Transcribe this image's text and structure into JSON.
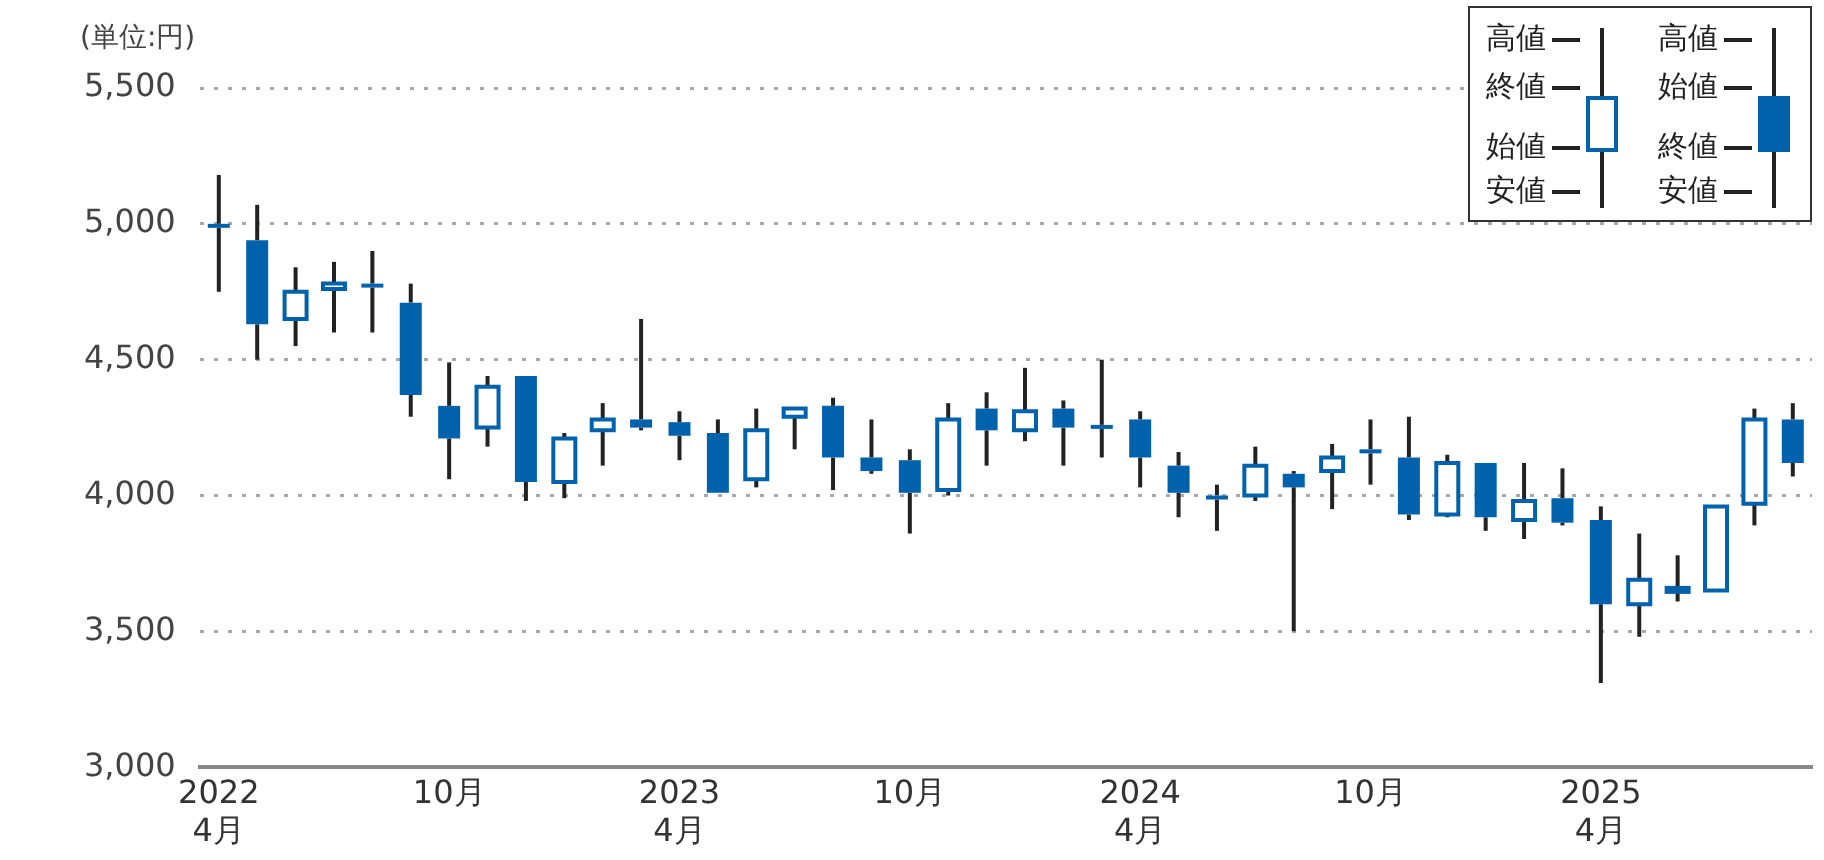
{
  "chart_data": {
    "type": "candlestick",
    "ylabel": "(単位:円)",
    "categories": [
      "2022\n4月",
      null,
      null,
      null,
      null,
      null,
      "10月",
      null,
      null,
      null,
      null,
      null,
      "2023\n4月",
      null,
      null,
      null,
      null,
      null,
      "10月",
      null,
      null,
      null,
      null,
      null,
      "2024\n4月",
      null,
      null,
      null,
      null,
      null,
      "10月",
      null,
      null,
      null,
      null,
      null,
      "2025\n4月",
      null,
      null,
      null,
      null,
      null
    ],
    "ohlc": [
      [
        5000,
        5180,
        4750,
        4990
      ],
      [
        4940,
        5070,
        4500,
        4630
      ],
      [
        4650,
        4840,
        4550,
        4750
      ],
      [
        4760,
        4860,
        4600,
        4780
      ],
      [
        4780,
        4900,
        4600,
        4770
      ],
      [
        4710,
        4780,
        4290,
        4370
      ],
      [
        4330,
        4490,
        4060,
        4210
      ],
      [
        4250,
        4440,
        4180,
        4400
      ],
      [
        4440,
        4440,
        3980,
        4050
      ],
      [
        4050,
        4230,
        3990,
        4210
      ],
      [
        4240,
        4340,
        4110,
        4280
      ],
      [
        4280,
        4650,
        4240,
        4250
      ],
      [
        4270,
        4310,
        4130,
        4220
      ],
      [
        4230,
        4280,
        4010,
        4010
      ],
      [
        4060,
        4320,
        4030,
        4240
      ],
      [
        4290,
        4320,
        4170,
        4320
      ],
      [
        4330,
        4360,
        4020,
        4140
      ],
      [
        4140,
        4280,
        4080,
        4090
      ],
      [
        4130,
        4170,
        3860,
        4010
      ],
      [
        4020,
        4340,
        4000,
        4280
      ],
      [
        4320,
        4380,
        4110,
        4240
      ],
      [
        4240,
        4470,
        4200,
        4310
      ],
      [
        4320,
        4350,
        4110,
        4250
      ],
      [
        4260,
        4500,
        4140,
        4250
      ],
      [
        4280,
        4310,
        4030,
        4140
      ],
      [
        4110,
        4160,
        3920,
        4010
      ],
      [
        4000,
        4040,
        3870,
        3990
      ],
      [
        4000,
        4180,
        3980,
        4110
      ],
      [
        4080,
        4090,
        3500,
        4030
      ],
      [
        4090,
        4190,
        3950,
        4140
      ],
      [
        4170,
        4280,
        4040,
        4160
      ],
      [
        4140,
        4290,
        3910,
        3930
      ],
      [
        3930,
        4150,
        3920,
        4120
      ],
      [
        4120,
        4120,
        3870,
        3920
      ],
      [
        3910,
        4120,
        3840,
        3980
      ],
      [
        3990,
        4100,
        3890,
        3900
      ],
      [
        3910,
        3960,
        3310,
        3600
      ],
      [
        3600,
        3860,
        3480,
        3690
      ],
      [
        3650,
        3780,
        3610,
        3660
      ],
      [
        3650,
        3960,
        3650,
        3960
      ],
      [
        3970,
        4320,
        3890,
        4280
      ],
      [
        4280,
        4340,
        4070,
        4120
      ]
    ],
    "color": "#0062ad",
    "ylim": [
      3000,
      5500
    ],
    "yticks": [
      {
        "value": 3000,
        "label": "3,000"
      },
      {
        "value": 3500,
        "label": "3,500"
      },
      {
        "value": 4000,
        "label": "4,000"
      },
      {
        "value": 4500,
        "label": "4,500"
      },
      {
        "value": 5000,
        "label": "5,000"
      },
      {
        "value": 5500,
        "label": "5,500"
      }
    ],
    "grid": "y",
    "annotations": [
      "高値",
      "終値",
      "始値",
      "安値",
      "高値",
      "始値",
      "終値",
      "安値"
    ]
  }
}
